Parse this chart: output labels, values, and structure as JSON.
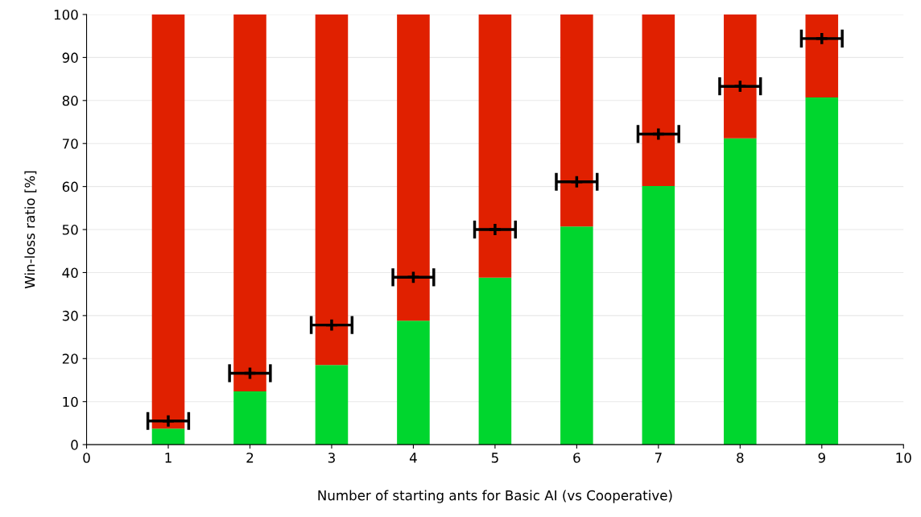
{
  "chart_data": {
    "type": "bar",
    "stacked": true,
    "xlabel": "Number of starting ants for Basic AI (vs Cooperative)",
    "ylabel": "Win-loss ratio [%]",
    "x": [
      1,
      2,
      3,
      4,
      5,
      6,
      7,
      8,
      9
    ],
    "series": [
      {
        "color": "#00d62e",
        "values": [
          3.7,
          12.4,
          18.5,
          28.8,
          38.8,
          50.7,
          60.1,
          71.2,
          80.7
        ]
      },
      {
        "color": "#e02000",
        "values": [
          96.3,
          87.6,
          81.5,
          71.2,
          61.2,
          49.3,
          39.9,
          28.8,
          19.3
        ]
      },
      {
        "type": "scatter",
        "color": "#000000",
        "marker": "cross",
        "values": [
          5.5,
          16.6,
          27.8,
          38.9,
          50,
          61.1,
          72.2,
          83.3,
          94.4
        ],
        "xerrors": [
          0.25,
          0.25,
          0.25,
          0.25,
          0.25,
          0.25,
          0.25,
          0.25,
          0.25
        ]
      }
    ],
    "xlim": [
      0,
      10
    ],
    "xticks": [
      0,
      1,
      2,
      3,
      4,
      5,
      6,
      7,
      8,
      9,
      10
    ],
    "ylim": [
      0,
      100
    ],
    "yticks": [
      0,
      10,
      20,
      30,
      40,
      50,
      60,
      70,
      80,
      90,
      100
    ],
    "grid": "y"
  }
}
